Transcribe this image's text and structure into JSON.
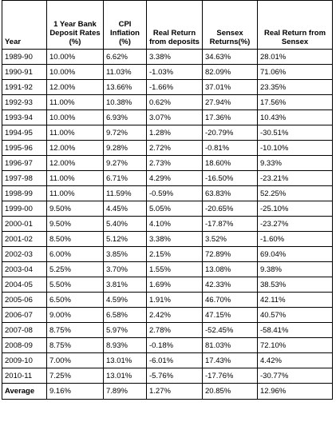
{
  "table": {
    "headers": [
      "Year",
      "1 Year Bank Deposit Rates (%)",
      "CPI Inflation (%)",
      "Real Return from deposits",
      "Sensex Returns(%)",
      "Real Return from Sensex"
    ],
    "rows": [
      [
        "1989-90",
        "10.00%",
        "6.62%",
        "3.38%",
        "34.63%",
        "28.01%"
      ],
      [
        "1990-91",
        "10.00%",
        "11.03%",
        "-1.03%",
        "82.09%",
        "71.06%"
      ],
      [
        "1991-92",
        "12.00%",
        "13.66%",
        "-1.66%",
        "37.01%",
        "23.35%"
      ],
      [
        "1992-93",
        "11.00%",
        "10.38%",
        "0.62%",
        "27.94%",
        "17.56%"
      ],
      [
        "1993-94",
        "10.00%",
        "6.93%",
        "3.07%",
        "17.36%",
        "10.43%"
      ],
      [
        "1994-95",
        "11.00%",
        "9.72%",
        "1.28%",
        "-20.79%",
        "-30.51%"
      ],
      [
        "1995-96",
        "12.00%",
        "9.28%",
        "2.72%",
        "-0.81%",
        "-10.10%"
      ],
      [
        "1996-97",
        "12.00%",
        "9.27%",
        "2.73%",
        "18.60%",
        "9.33%"
      ],
      [
        "1997-98",
        "11.00%",
        "6.71%",
        "4.29%",
        "-16.50%",
        "-23.21%"
      ],
      [
        "1998-99",
        "11.00%",
        "11.59%",
        "-0.59%",
        "63.83%",
        "52.25%"
      ],
      [
        "1999-00",
        "9.50%",
        "4.45%",
        "5.05%",
        "-20.65%",
        "-25.10%"
      ],
      [
        "2000-01",
        "9.50%",
        "5.40%",
        "4.10%",
        "-17.87%",
        "-23.27%"
      ],
      [
        "2001-02",
        "8.50%",
        "5.12%",
        "3.38%",
        "3.52%",
        "-1.60%"
      ],
      [
        "2002-03",
        "6.00%",
        "3.85%",
        "2.15%",
        "72.89%",
        "69.04%"
      ],
      [
        "2003-04",
        "5.25%",
        "3.70%",
        "1.55%",
        "13.08%",
        "9.38%"
      ],
      [
        "2004-05",
        "5.50%",
        "3.81%",
        "1.69%",
        "42.33%",
        "38.53%"
      ],
      [
        "2005-06",
        "6.50%",
        "4.59%",
        "1.91%",
        "46.70%",
        "42.11%"
      ],
      [
        "2006-07",
        "9.00%",
        "6.58%",
        "2.42%",
        "47.15%",
        "40.57%"
      ],
      [
        "2007-08",
        "8.75%",
        "5.97%",
        "2.78%",
        "-52.45%",
        "-58.41%"
      ],
      [
        "2008-09",
        "8.75%",
        "8.93%",
        "-0.18%",
        "81.03%",
        "72.10%"
      ],
      [
        "2009-10",
        "7.00%",
        "13.01%",
        "-6.01%",
        "17.43%",
        "4.42%"
      ],
      [
        "2010-11",
        "7.25%",
        "13.01%",
        "-5.76%",
        "-17.76%",
        "-30.77%"
      ]
    ],
    "average": [
      "Average",
      "9.16%",
      "7.89%",
      "1.27%",
      "20.85%",
      "12.96%"
    ]
  }
}
